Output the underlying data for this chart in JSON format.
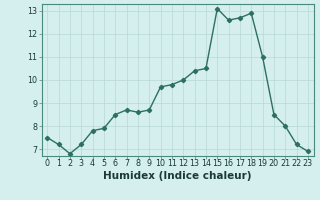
{
  "title": "",
  "xlabel": "Humidex (Indice chaleur)",
  "ylabel": "",
  "x": [
    0,
    1,
    2,
    3,
    4,
    5,
    6,
    7,
    8,
    9,
    10,
    11,
    12,
    13,
    14,
    15,
    16,
    17,
    18,
    19,
    20,
    21,
    22,
    23
  ],
  "y": [
    7.5,
    7.2,
    6.8,
    7.2,
    7.8,
    7.9,
    8.5,
    8.7,
    8.6,
    8.7,
    9.7,
    9.8,
    10.0,
    10.4,
    10.5,
    13.1,
    12.6,
    12.7,
    12.9,
    11.0,
    8.5,
    8.0,
    7.2,
    6.9
  ],
  "line_color": "#2d7060",
  "marker": "D",
  "marker_size": 2.2,
  "line_width": 1.0,
  "bg_color": "#d5eeee",
  "grid_color": "#b8d8d8",
  "ylim": [
    6.7,
    13.3
  ],
  "xlim": [
    -0.5,
    23.5
  ],
  "yticks": [
    7,
    8,
    9,
    10,
    11,
    12,
    13
  ],
  "xticks": [
    0,
    1,
    2,
    3,
    4,
    5,
    6,
    7,
    8,
    9,
    10,
    11,
    12,
    13,
    14,
    15,
    16,
    17,
    18,
    19,
    20,
    21,
    22,
    23
  ],
  "tick_fontsize": 5.8,
  "xlabel_fontsize": 7.5,
  "spine_color": "#4a8a7a"
}
